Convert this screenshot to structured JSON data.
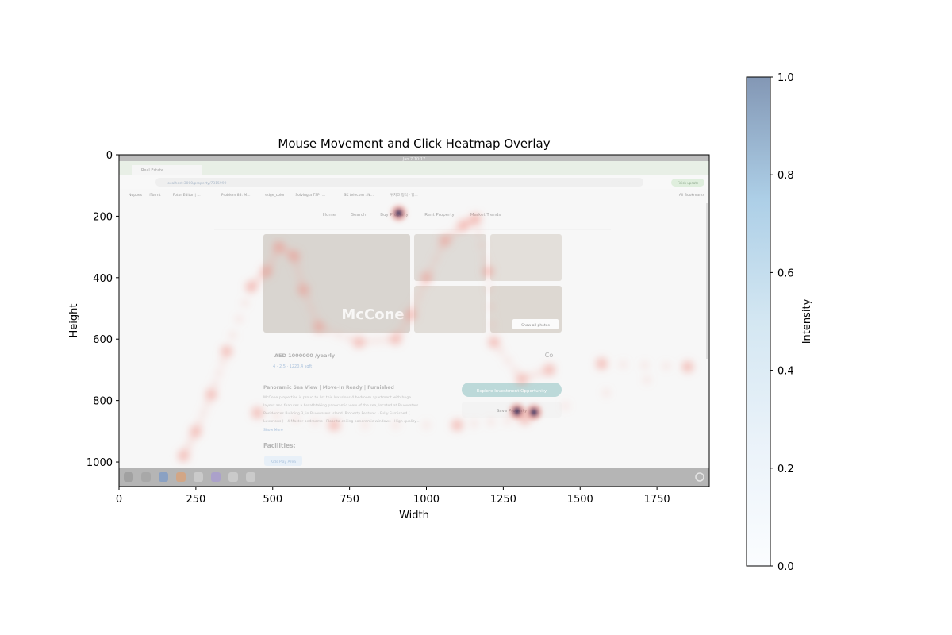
{
  "chart_data": {
    "type": "heatmap",
    "title": "Mouse Movement and Click Heatmap Overlay",
    "xlabel": "Width",
    "ylabel": "Height",
    "xlim": [
      0,
      1920
    ],
    "ylim": [
      1080,
      0
    ],
    "xticks": [
      0,
      250,
      500,
      750,
      1000,
      1250,
      1500,
      1750
    ],
    "yticks": [
      0,
      200,
      400,
      600,
      800,
      1000
    ],
    "colorbar": {
      "label": "Intensity",
      "range": [
        0,
        1
      ],
      "ticks": [
        "0.0",
        "0.2",
        "0.4",
        "0.6",
        "0.8",
        "1.0"
      ]
    },
    "click_points": [
      {
        "x": 910,
        "y": 190,
        "intensity": 0.95
      },
      {
        "x": 1295,
        "y": 835,
        "intensity": 1.0
      },
      {
        "x": 1350,
        "y": 838,
        "intensity": 0.9
      }
    ],
    "movement_path": [
      [
        210,
        980
      ],
      [
        250,
        900
      ],
      [
        300,
        780
      ],
      [
        350,
        640
      ],
      [
        430,
        430
      ],
      [
        480,
        380
      ],
      [
        520,
        300
      ],
      [
        570,
        330
      ],
      [
        600,
        440
      ],
      [
        650,
        560
      ],
      [
        780,
        610
      ],
      [
        900,
        600
      ],
      [
        950,
        520
      ],
      [
        1000,
        400
      ],
      [
        1060,
        280
      ],
      [
        1120,
        230
      ],
      [
        1160,
        210
      ],
      [
        1200,
        380
      ],
      [
        1220,
        610
      ],
      [
        1310,
        730
      ],
      [
        1400,
        700
      ],
      [
        1570,
        680
      ],
      [
        1850,
        690
      ],
      [
        1320,
        860
      ],
      [
        1100,
        880
      ],
      [
        700,
        880
      ],
      [
        450,
        840
      ]
    ],
    "screenshot": {
      "clock": "Jan 7 10:17",
      "tab_title": "Real Estate",
      "url": "localhost:3000/property/7315999",
      "bookmarks": [
        "Nuppes",
        "iTorrnt",
        "Fotor Editor | ...",
        "Problem 88: M...",
        "edge_color",
        "Solving a TSP r...",
        "SK telecom : N...",
        "위치코 정석 · 엉..."
      ],
      "all_bookmarks": "All Bookmarks",
      "update_button": "Finish update",
      "nav": [
        "Home",
        "Search",
        "Buy Property",
        "Rent Property",
        "Market Trends"
      ],
      "watermark": "McCone",
      "show_all_photos": "Show all photos",
      "price": "AED 1000000 /yearly",
      "specs": "4 · 2.5 · 1220.4 sqft",
      "agent_badge": "Co",
      "headline": "Panoramic Sea View | Move-In Ready | Furnished",
      "description": [
        "McCone properties is proud to list this luxurious 4 bedroom apartment with huge",
        "layout and features a breathtaking panoramic view of the sea, located at Bluewaters",
        "Residences Building 3, in Bluewaters Island. Property Feature: - Fully Furnished (",
        "Luxurious ) - 4 Master bedrooms - Floor-to-ceiling panoramic windows - High quality..."
      ],
      "show_more": "Show More",
      "explore_button": "Explore Investment Opportunity",
      "save_button": "Save Property",
      "facilities_heading": "Facilities:",
      "facility_chip": "Kids Play Area"
    }
  }
}
